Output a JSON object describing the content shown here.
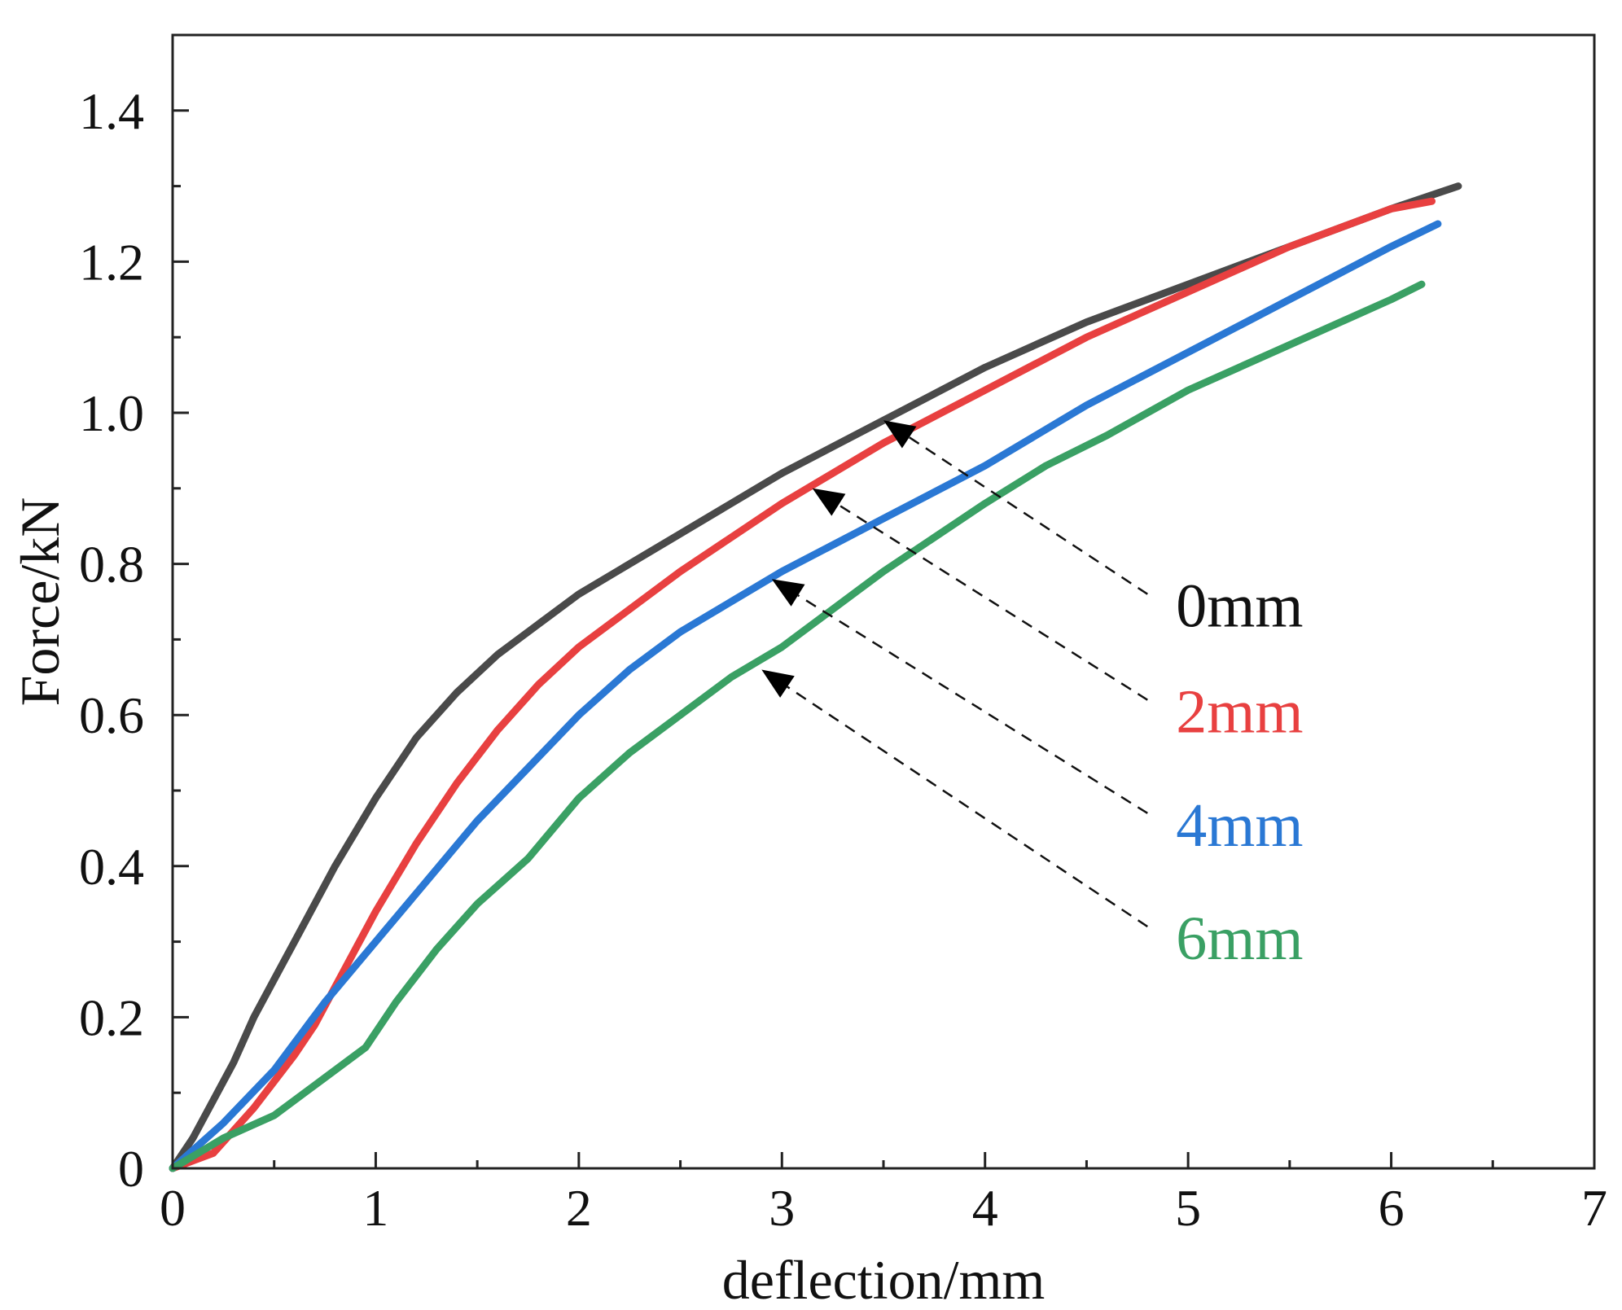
{
  "chart_data": {
    "type": "line",
    "title": "",
    "xlabel": "deflection/mm",
    "ylabel": "Force/kN",
    "xlim": [
      0,
      7
    ],
    "ylim": [
      0,
      1.5
    ],
    "xticks": [
      0,
      1,
      2,
      3,
      4,
      5,
      6,
      7
    ],
    "xtick_labels": [
      "0",
      "1",
      "2",
      "3",
      "4",
      "5",
      "6",
      "7"
    ],
    "yticks": [
      0,
      0.2,
      0.4,
      0.6,
      0.8,
      1.0,
      1.2,
      1.4
    ],
    "ytick_labels": [
      "0",
      "0.2",
      "0.4",
      "0.6",
      "0.8",
      "1.0",
      "1.2",
      "1.4"
    ],
    "grid": false,
    "series": [
      {
        "name": "0mm",
        "color": "#4a4a4a",
        "x": [
          0,
          0.1,
          0.2,
          0.3,
          0.4,
          0.5,
          0.6,
          0.8,
          1.0,
          1.2,
          1.4,
          1.6,
          1.8,
          2.0,
          2.5,
          3.0,
          3.5,
          4.0,
          4.5,
          5.0,
          5.5,
          6.0,
          6.33
        ],
        "y": [
          0,
          0.04,
          0.09,
          0.14,
          0.2,
          0.25,
          0.3,
          0.4,
          0.49,
          0.57,
          0.63,
          0.68,
          0.72,
          0.76,
          0.84,
          0.92,
          0.99,
          1.06,
          1.12,
          1.17,
          1.22,
          1.27,
          1.3
        ]
      },
      {
        "name": "2mm",
        "color": "#e84040",
        "x": [
          0,
          0.2,
          0.4,
          0.6,
          0.7,
          0.8,
          1.0,
          1.2,
          1.4,
          1.6,
          1.8,
          2.0,
          2.5,
          3.0,
          3.5,
          4.0,
          4.5,
          5.0,
          5.5,
          6.0,
          6.2
        ],
        "y": [
          0,
          0.02,
          0.08,
          0.15,
          0.19,
          0.24,
          0.34,
          0.43,
          0.51,
          0.58,
          0.64,
          0.69,
          0.79,
          0.88,
          0.96,
          1.03,
          1.1,
          1.16,
          1.22,
          1.27,
          1.28
        ]
      },
      {
        "name": "4mm",
        "color": "#2a78d4",
        "x": [
          0,
          0.25,
          0.5,
          0.75,
          1.0,
          1.25,
          1.5,
          1.75,
          2.0,
          2.25,
          2.5,
          2.75,
          3.0,
          3.5,
          4.0,
          4.5,
          5.0,
          5.5,
          6.0,
          6.23
        ],
        "y": [
          0,
          0.06,
          0.13,
          0.22,
          0.3,
          0.38,
          0.46,
          0.53,
          0.6,
          0.66,
          0.71,
          0.75,
          0.79,
          0.86,
          0.93,
          1.01,
          1.08,
          1.15,
          1.22,
          1.25
        ]
      },
      {
        "name": "6mm",
        "color": "#3aa064",
        "x": [
          0,
          0.25,
          0.5,
          0.75,
          0.95,
          1.1,
          1.3,
          1.5,
          1.75,
          2.0,
          2.25,
          2.5,
          2.75,
          3.0,
          3.5,
          4.0,
          4.3,
          4.6,
          5.0,
          5.5,
          6.0,
          6.15
        ],
        "y": [
          0,
          0.04,
          0.07,
          0.12,
          0.16,
          0.22,
          0.29,
          0.35,
          0.41,
          0.49,
          0.55,
          0.6,
          0.65,
          0.69,
          0.79,
          0.88,
          0.93,
          0.97,
          1.03,
          1.09,
          1.15,
          1.17
        ]
      }
    ],
    "annotations": [
      {
        "text": "0mm",
        "color": "#111111",
        "pointer_to": [
          3.5,
          0.99
        ],
        "from": [
          4.8,
          0.76
        ]
      },
      {
        "text": "2mm",
        "color": "#e84040",
        "pointer_to": [
          3.15,
          0.9
        ],
        "from": [
          4.8,
          0.62
        ]
      },
      {
        "text": "4mm",
        "color": "#2a78d4",
        "pointer_to": [
          2.95,
          0.78
        ],
        "from": [
          4.8,
          0.47
        ]
      },
      {
        "text": "6mm",
        "color": "#3aa064",
        "pointer_to": [
          2.9,
          0.66
        ],
        "from": [
          4.8,
          0.32
        ]
      }
    ]
  }
}
